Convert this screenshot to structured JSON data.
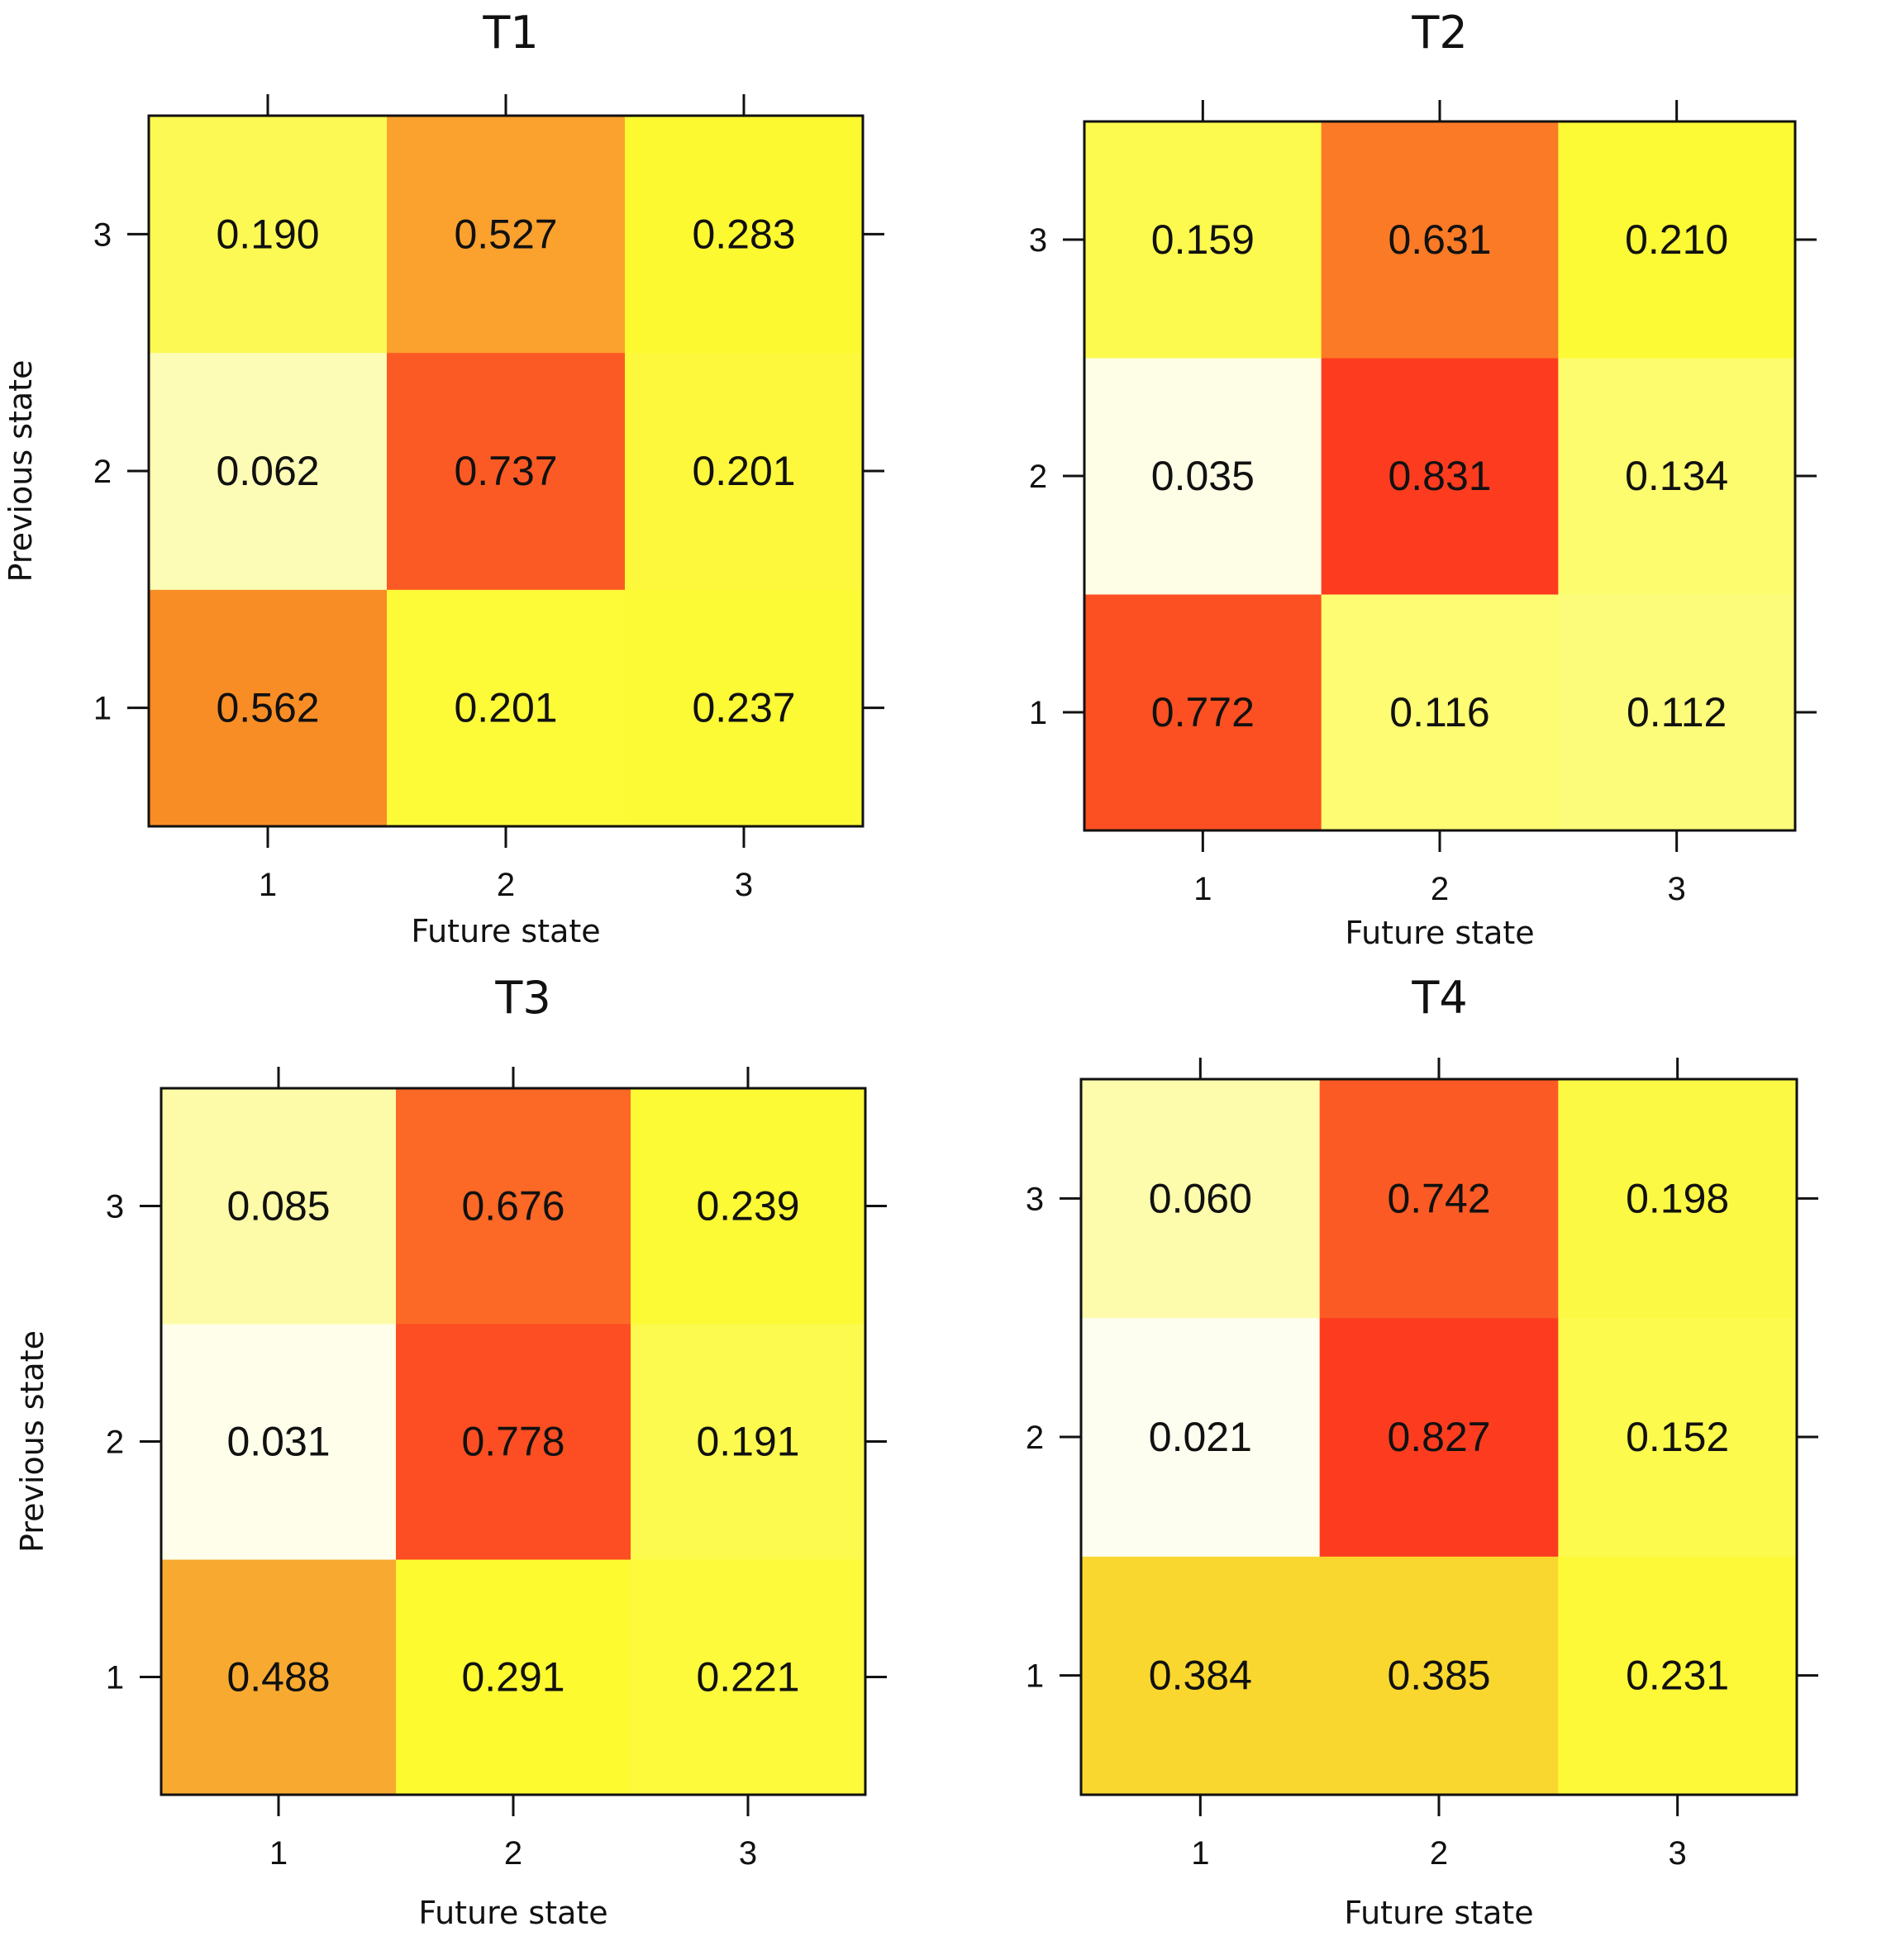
{
  "chart_data": [
    {
      "type": "heatmap",
      "title": "T1",
      "xlabel": "Future state",
      "ylabel": "Previous state",
      "x_categories": [
        "1",
        "2",
        "3"
      ],
      "y_categories": [
        "1",
        "2",
        "3"
      ],
      "values": [
        [
          "0.562",
          "0.201",
          "0.237"
        ],
        [
          "0.062",
          "0.737",
          "0.201"
        ],
        [
          "0.190",
          "0.527",
          "0.283"
        ]
      ],
      "colors": [
        [
          "#f98d25",
          "#fdfa38",
          "#fcf935"
        ],
        [
          "#fdfcb6",
          "#fc5a24",
          "#fdf83b"
        ],
        [
          "#fdf954",
          "#fba12e",
          "#fdf930"
        ]
      ]
    },
    {
      "type": "heatmap",
      "title": "T2",
      "xlabel": "Future state",
      "ylabel": "",
      "x_categories": [
        "1",
        "2",
        "3"
      ],
      "y_categories": [
        "1",
        "2",
        "3"
      ],
      "values": [
        [
          "0.772",
          "0.116",
          "0.112"
        ],
        [
          "0.035",
          "0.831",
          "0.134"
        ],
        [
          "0.159",
          "0.631",
          "0.210"
        ]
      ],
      "colors": [
        [
          "#fc4f22",
          "#fdfc72",
          "#fdfc7a"
        ],
        [
          "#fefee6",
          "#fd3b1f",
          "#fdfb6e"
        ],
        [
          "#fcfa4e",
          "#fb7a26",
          "#fcf935"
        ]
      ]
    },
    {
      "type": "heatmap",
      "title": "T3",
      "xlabel": "Future state",
      "ylabel": "Previous state",
      "x_categories": [
        "1",
        "2",
        "3"
      ],
      "y_categories": [
        "1",
        "2",
        "3"
      ],
      "values": [
        [
          "0.488",
          "0.291",
          "0.221"
        ],
        [
          "0.031",
          "0.778",
          "0.191"
        ],
        [
          "0.085",
          "0.676",
          "0.239"
        ]
      ],
      "colors": [
        [
          "#f8aa30",
          "#fdfa30",
          "#fdf93b"
        ],
        [
          "#fefeea",
          "#fc4e22",
          "#fcfa4f"
        ],
        [
          "#fdfba8",
          "#fc6826",
          "#fcf935"
        ]
      ]
    },
    {
      "type": "heatmap",
      "title": "T4",
      "xlabel": "Future state",
      "ylabel": "",
      "x_categories": [
        "1",
        "2",
        "3"
      ],
      "y_categories": [
        "1",
        "2",
        "3"
      ],
      "values": [
        [
          "0.384",
          "0.385",
          "0.231"
        ],
        [
          "0.021",
          "0.827",
          "0.152"
        ],
        [
          "0.060",
          "0.742",
          "0.198"
        ]
      ],
      "colors": [
        [
          "#fad72e",
          "#fad72e",
          "#fdf938"
        ],
        [
          "#fefef0",
          "#fd3c1f",
          "#fcfa4c"
        ],
        [
          "#fdfcad",
          "#fc5a24",
          "#fcf945"
        ]
      ]
    }
  ]
}
